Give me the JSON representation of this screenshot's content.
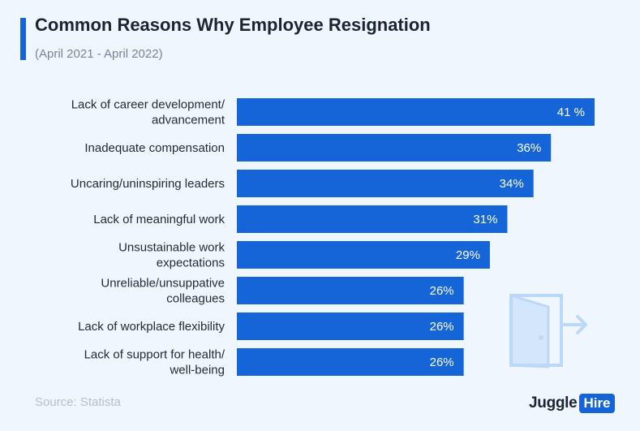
{
  "header": {
    "title": "Common Reasons Why Employee Resignation",
    "subtitle": "(April 2021 - April 2022)"
  },
  "colors": {
    "bar": "#1565d8",
    "accent": "#1565d8",
    "background": "#eff6fe",
    "door_icon": "#bcd8f8"
  },
  "chart_data": {
    "type": "bar",
    "orientation": "horizontal",
    "title": "Common Reasons Why Employee Resignation",
    "subtitle": "(April 2021 - April 2022)",
    "unit": "%",
    "xlim": [
      0,
      41
    ],
    "grid": false,
    "categories": [
      [
        "Lack of career development/",
        "advancement"
      ],
      [
        "Inadequate compensation"
      ],
      [
        "Uncaring/uninspiring leaders"
      ],
      [
        "Lack of meaningful work"
      ],
      [
        "Unsustainable work",
        "expectations"
      ],
      [
        "Unreliable/unsuppative",
        "colleagues"
      ],
      [
        "Lack of workplace flexibility"
      ],
      [
        "Lack of support for health/",
        "well-being"
      ]
    ],
    "values": [
      41,
      36,
      34,
      31,
      29,
      26,
      26,
      26
    ],
    "data_labels": [
      "41 %",
      "36%",
      "34%",
      "31%",
      "29%",
      "26%",
      "26%",
      "26%"
    ]
  },
  "footer": {
    "source": "Source: Statista",
    "logo_word": "Juggle",
    "logo_badge": "Hire"
  },
  "decor": {
    "icon": "door-exit-icon"
  }
}
